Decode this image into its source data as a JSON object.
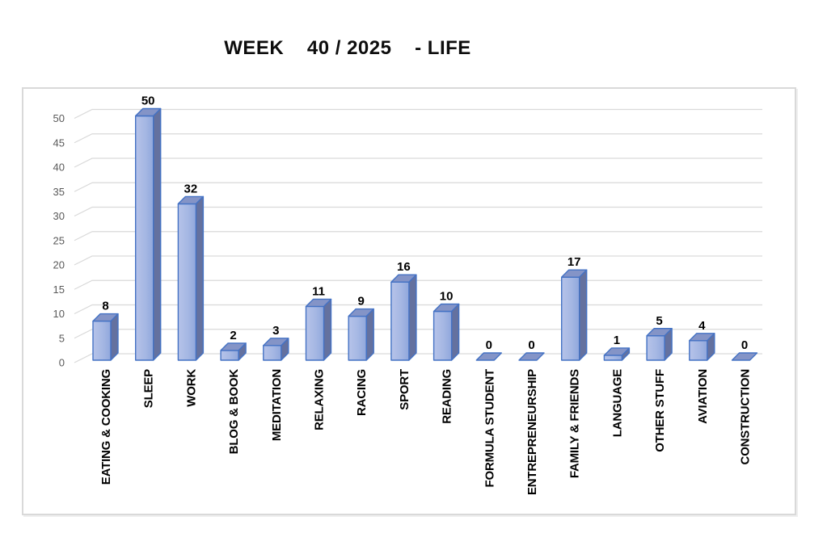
{
  "chart_data": {
    "type": "bar",
    "projection": "3d",
    "title": "WEEK    40 / 2025    - LIFE",
    "categories": [
      "EATING & COOKING",
      "SLEEP",
      "WORK",
      "BLOG & BOOK",
      "MEDITATION",
      "RELAXING",
      "RACING",
      "SPORT",
      "READING",
      "FORMULA STUDENT",
      "ENTREPRENEURSHIP",
      "FAMILY & FRIENDS",
      "LANGUAGE",
      "OTHER STUFF",
      "AVIATION",
      "CONSTRUCTION"
    ],
    "values": [
      8,
      50,
      32,
      2,
      3,
      11,
      9,
      16,
      10,
      0,
      0,
      17,
      1,
      5,
      4,
      0
    ],
    "data_labels": true,
    "yticks": [
      0,
      5,
      10,
      15,
      20,
      25,
      30,
      35,
      40,
      45,
      50
    ],
    "ylim": [
      0,
      50
    ],
    "legend": "none",
    "grid": true,
    "colors": {
      "bar_front_light": "#b6c3e9",
      "bar_front_mid": "#a5b7e3",
      "bar_front_dark": "#90a7dc",
      "bar_side": "#64719f",
      "bar_top": "#8494c7",
      "bar_border": "#4472c4",
      "gridline": "#d9d9d9",
      "tick_label": "#595959",
      "value_label": "#000000",
      "category_label": "#000000",
      "frame_border": "#d9d9d9",
      "title": "#0d0d0d",
      "background": "#ffffff"
    }
  }
}
